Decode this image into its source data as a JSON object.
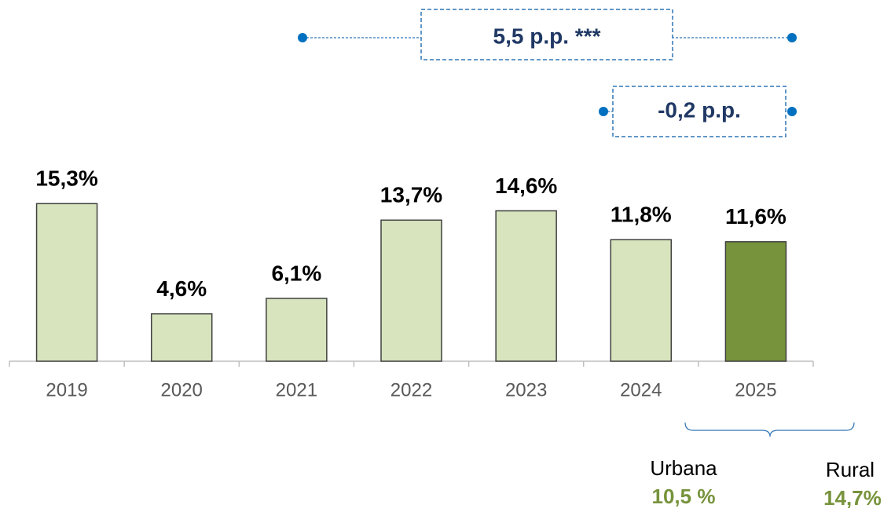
{
  "chart_data": {
    "type": "bar",
    "categories": [
      "2019",
      "2020",
      "2021",
      "2022",
      "2023",
      "2024",
      "2025"
    ],
    "values": [
      15.3,
      4.6,
      6.1,
      13.7,
      14.6,
      11.8,
      11.6
    ],
    "value_labels": [
      "15,3%",
      "4,6%",
      "6,1%",
      "13,7%",
      "14,6%",
      "11,8%",
      "11,6%"
    ],
    "colors": [
      "#d7e4bd",
      "#d7e4bd",
      "#d7e4bd",
      "#d7e4bd",
      "#d7e4bd",
      "#d7e4bd",
      "#77933c"
    ],
    "ylim": [
      0,
      17
    ],
    "annotations": [
      "5,5 p.p. ***",
      "-0,2 p.p."
    ],
    "breakdown": [
      {
        "name": "Urbana",
        "label": "10,5 %"
      },
      {
        "name": "Rural",
        "label": "14,7%"
      }
    ]
  }
}
